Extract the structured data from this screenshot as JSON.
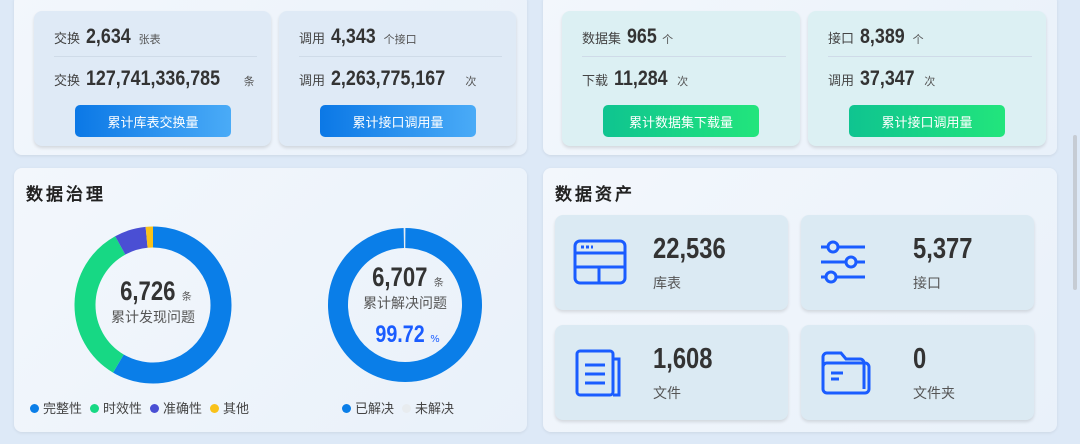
{
  "exchange": {
    "cards": [
      {
        "rows": [
          {
            "label": "交换",
            "value": "2,634",
            "unit": "张表"
          },
          {
            "label": "交换",
            "value": "127,741,336,785",
            "unit": "条"
          }
        ],
        "button": "累计库表交换量"
      },
      {
        "rows": [
          {
            "label": "调用",
            "value": "4,343",
            "unit": "个接口"
          },
          {
            "label": "调用",
            "value": "2,263,775,167",
            "unit": "次"
          }
        ],
        "button": "累计接口调用量"
      }
    ]
  },
  "open": {
    "cards": [
      {
        "rows": [
          {
            "label": "数据集",
            "value": "965",
            "unit": "个"
          },
          {
            "label": "下载",
            "value": "11,284",
            "unit": "次"
          }
        ],
        "button": "累计数据集下载量"
      },
      {
        "rows": [
          {
            "label": "接口",
            "value": "8,389",
            "unit": "个"
          },
          {
            "label": "调用",
            "value": "37,347",
            "unit": "次"
          }
        ],
        "button": "累计接口调用量"
      }
    ]
  },
  "governance": {
    "title": "数据治理",
    "found": {
      "value": "6,726",
      "unit": "条",
      "label": "累计发现问题"
    },
    "resolved": {
      "value": "6,707",
      "unit": "条",
      "label": "累计解决问题",
      "percent": "99.72",
      "percent_unit": "%"
    },
    "legend1": [
      "完整性",
      "时效性",
      "准确性",
      "其他"
    ],
    "legend2": [
      "已解决",
      "未解决"
    ]
  },
  "assets": {
    "title": "数据资产",
    "items": [
      {
        "value": "22,536",
        "label": "库表",
        "icon": "table-icon"
      },
      {
        "value": "5,377",
        "label": "接口",
        "icon": "sliders-icon"
      },
      {
        "value": "1,608",
        "label": "文件",
        "icon": "document-icon"
      },
      {
        "value": "0",
        "label": "文件夹",
        "icon": "folder-icon"
      }
    ]
  },
  "chart_data": [
    {
      "type": "pie",
      "categories": [
        "完整性",
        "时效性",
        "准确性",
        "其他"
      ],
      "values": [
        58.5,
        33.5,
        6.5,
        1.5
      ],
      "colors": [
        "#0a7ee8",
        "#17d884",
        "#4a4fd4",
        "#f9c21a"
      ]
    },
    {
      "type": "pie",
      "categories": [
        "已解决",
        "未解决"
      ],
      "values": [
        99.72,
        0.28
      ],
      "colors": [
        "#0a7ee8",
        "#e8ecef"
      ]
    }
  ]
}
